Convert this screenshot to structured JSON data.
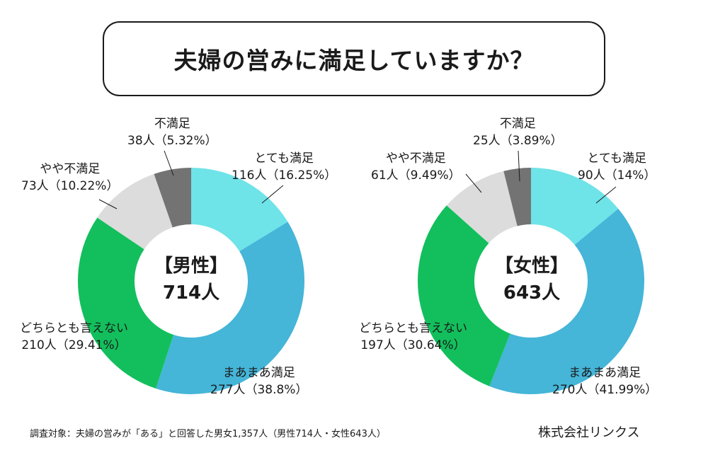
{
  "title": "夫婦の営みに満足していますか？",
  "footnote": "調査対象：夫婦の営みが「ある」と回答した男女1,357人（男性714人・女性643人）",
  "company": "株式会社リンクス",
  "colors": {
    "very_satisfied": "#6ee3e8",
    "somewhat_satisfied": "#45b5d8",
    "neutral": "#12bf5c",
    "somewhat_dissatisfied": "#dcdcdc",
    "dissatisfied": "#737373"
  },
  "chart_data": [
    {
      "type": "donut",
      "center_label": "【男性】",
      "center_value": "714人",
      "categories": [
        "とても満足",
        "まあまあ満足",
        "どちらとも言えない",
        "やや不満足",
        "不満足"
      ],
      "counts": [
        116,
        277,
        210,
        73,
        38
      ],
      "percents": [
        16.25,
        38.8,
        29.41,
        10.22,
        5.32
      ],
      "labels": [
        {
          "name": "とても満足",
          "value": "116人（16.25%）"
        },
        {
          "name": "まあまあ満足",
          "value": "277人（38.8%）"
        },
        {
          "name": "どちらとも言えない",
          "value": "210人（29.41%）"
        },
        {
          "name": "やや不満足",
          "value": "73人（10.22%）"
        },
        {
          "name": "不満足",
          "value": "38人（5.32%）"
        }
      ]
    },
    {
      "type": "donut",
      "center_label": "【女性】",
      "center_value": "643人",
      "categories": [
        "とても満足",
        "まあまあ満足",
        "どちらとも言えない",
        "やや不満足",
        "不満足"
      ],
      "counts": [
        90,
        270,
        197,
        61,
        25
      ],
      "percents": [
        14,
        41.99,
        30.64,
        9.49,
        3.89
      ],
      "labels": [
        {
          "name": "とても満足",
          "value": "90人（14%）"
        },
        {
          "name": "まあまあ満足",
          "value": "270人（41.99%）"
        },
        {
          "name": "どちらとも言えない",
          "value": "197人（30.64%）"
        },
        {
          "name": "やや不満足",
          "value": "61人（9.49%）"
        },
        {
          "name": "不満足",
          "value": "25人（3.89%）"
        }
      ]
    }
  ]
}
